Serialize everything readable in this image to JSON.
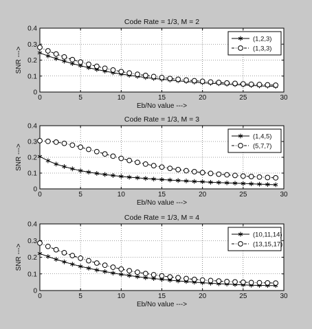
{
  "chart_data": [
    {
      "type": "line",
      "title": "Code Rate = 1/3, M = 2",
      "xlabel": "Eb/No value --->",
      "ylabel": "SNR --->",
      "xlim": [
        0,
        30
      ],
      "ylim": [
        0,
        0.4
      ],
      "xticks": [
        "0",
        "5",
        "10",
        "15",
        "20",
        "25",
        "30"
      ],
      "yticks": [
        "0",
        "0.1",
        "0.2",
        "0.3",
        "0.4"
      ],
      "grid": true,
      "legend_position": "top-right",
      "x": [
        0,
        1,
        2,
        3,
        4,
        5,
        6,
        7,
        8,
        9,
        10,
        11,
        12,
        13,
        14,
        15,
        16,
        17,
        18,
        19,
        20,
        21,
        22,
        23,
        24,
        25,
        26,
        27,
        28,
        29
      ],
      "series": [
        {
          "name": "(1,2,3)",
          "marker": "star",
          "values": [
            0.245,
            0.226,
            0.209,
            0.193,
            0.178,
            0.165,
            0.152,
            0.141,
            0.131,
            0.121,
            0.113,
            0.105,
            0.098,
            0.091,
            0.085,
            0.08,
            0.075,
            0.07,
            0.066,
            0.062,
            0.058,
            0.055,
            0.052,
            0.049,
            0.046,
            0.044,
            0.041,
            0.039,
            0.037,
            0.035
          ]
        },
        {
          "name": "(1,3,3)",
          "marker": "circle",
          "values": [
            0.28,
            0.258,
            0.238,
            0.22,
            0.203,
            0.188,
            0.174,
            0.161,
            0.149,
            0.138,
            0.128,
            0.119,
            0.111,
            0.104,
            0.097,
            0.091,
            0.085,
            0.08,
            0.075,
            0.071,
            0.067,
            0.063,
            0.06,
            0.057,
            0.054,
            0.051,
            0.049,
            0.047,
            0.045,
            0.043
          ]
        }
      ]
    },
    {
      "type": "line",
      "title": "Code Rate = 1/3, M = 3",
      "xlabel": "Eb/No value --->",
      "ylabel": "SNR --->",
      "xlim": [
        0,
        30
      ],
      "ylim": [
        0,
        0.4
      ],
      "xticks": [
        "0",
        "5",
        "10",
        "15",
        "20",
        "25",
        "30"
      ],
      "yticks": [
        "0",
        "0.1",
        "0.2",
        "0.3",
        "0.4"
      ],
      "grid": true,
      "legend_position": "top-right",
      "x": [
        0,
        1,
        2,
        3,
        4,
        5,
        6,
        7,
        8,
        9,
        10,
        11,
        12,
        13,
        14,
        15,
        16,
        17,
        18,
        19,
        20,
        21,
        22,
        23,
        24,
        25,
        26,
        27,
        28,
        29
      ],
      "series": [
        {
          "name": "(1,4,5)",
          "marker": "star",
          "values": [
            0.205,
            0.178,
            0.157,
            0.141,
            0.127,
            0.115,
            0.106,
            0.098,
            0.091,
            0.085,
            0.079,
            0.074,
            0.07,
            0.066,
            0.062,
            0.059,
            0.056,
            0.053,
            0.05,
            0.047,
            0.045,
            0.042,
            0.04,
            0.038,
            0.036,
            0.034,
            0.032,
            0.03,
            0.028,
            0.026
          ]
        },
        {
          "name": "(5,7,7)",
          "marker": "circle",
          "values": [
            0.305,
            0.301,
            0.296,
            0.288,
            0.277,
            0.264,
            0.25,
            0.236,
            0.221,
            0.207,
            0.193,
            0.18,
            0.168,
            0.157,
            0.147,
            0.138,
            0.13,
            0.122,
            0.115,
            0.109,
            0.103,
            0.098,
            0.093,
            0.089,
            0.085,
            0.081,
            0.078,
            0.075,
            0.072,
            0.07
          ]
        }
      ]
    },
    {
      "type": "line",
      "title": "Code Rate = 1/3, M = 4",
      "xlabel": "Eb/No value --->",
      "ylabel": "SNR --->",
      "xlim": [
        0,
        30
      ],
      "ylim": [
        0,
        0.4
      ],
      "xticks": [
        "0",
        "5",
        "10",
        "15",
        "20",
        "25",
        "30"
      ],
      "yticks": [
        "0",
        "0.1",
        "0.2",
        "0.3",
        "0.4"
      ],
      "grid": true,
      "legend_position": "top-right",
      "x": [
        0,
        1,
        2,
        3,
        4,
        5,
        6,
        7,
        8,
        9,
        10,
        11,
        12,
        13,
        14,
        15,
        16,
        17,
        18,
        19,
        20,
        21,
        22,
        23,
        24,
        25,
        26,
        27,
        28,
        29
      ],
      "series": [
        {
          "name": "(10,11,14)",
          "marker": "star",
          "values": [
            0.222,
            0.204,
            0.187,
            0.172,
            0.158,
            0.145,
            0.134,
            0.123,
            0.114,
            0.105,
            0.097,
            0.09,
            0.083,
            0.077,
            0.072,
            0.067,
            0.062,
            0.058,
            0.054,
            0.05,
            0.047,
            0.044,
            0.041,
            0.039,
            0.036,
            0.034,
            0.032,
            0.031,
            0.03,
            0.03
          ]
        },
        {
          "name": "(13,15,17)",
          "marker": "circle",
          "values": [
            0.285,
            0.265,
            0.245,
            0.227,
            0.21,
            0.194,
            0.179,
            0.165,
            0.152,
            0.14,
            0.129,
            0.119,
            0.11,
            0.102,
            0.095,
            0.088,
            0.082,
            0.077,
            0.072,
            0.067,
            0.063,
            0.06,
            0.057,
            0.054,
            0.052,
            0.05,
            0.048,
            0.047,
            0.046,
            0.045
          ]
        }
      ]
    }
  ]
}
